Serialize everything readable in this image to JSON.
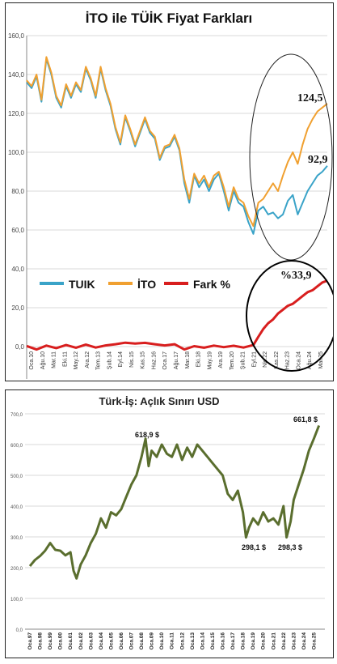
{
  "chart_data": [
    {
      "type": "line",
      "title": "İTO ile TÜİK Fiyat Farkları",
      "ylim": [
        0,
        160
      ],
      "yticks": [
        "0,0",
        "20,0",
        "40,0",
        "60,0",
        "80,0",
        "100,0",
        "120,0",
        "140,0",
        "160,0"
      ],
      "xticks": [
        "Oca.10",
        "Ağu.10",
        "Mar.11",
        "Eki.11",
        "May.12",
        "Ara.12",
        "Tem.13",
        "Şub.14",
        "Eyl.14",
        "Nis.15",
        "Kas.15",
        "Haz.16",
        "Oca.17",
        "Ağu.17",
        "Mar.18",
        "Eki.18",
        "May.19",
        "Ara.19",
        "Tem.20",
        "Şub.21",
        "Eyl.21",
        "Nis.22",
        "Kas.22",
        "Haz.23",
        "Oca.24",
        "Ağu.24",
        "Mar.25"
      ],
      "legend": [
        "TUIK",
        "İTO",
        "Fark %"
      ],
      "colors": {
        "tuik": "#3aa3c8",
        "ito": "#f0a030",
        "fark": "#d81e1e",
        "grid": "#d9d9d9"
      },
      "annotations": [
        "124,5",
        "92,9",
        "%33,9"
      ],
      "series": [
        {
          "name": "TUIK",
          "x": [
            0,
            3,
            6,
            9,
            12,
            15,
            18,
            21,
            24,
            27,
            30,
            33,
            36,
            39,
            42,
            45,
            48,
            51,
            54,
            57,
            60,
            63,
            66,
            69,
            72,
            75,
            78,
            81,
            84,
            87,
            90,
            93,
            96,
            99,
            102,
            105,
            108,
            111,
            114,
            117,
            120,
            123,
            126,
            129,
            132,
            135,
            138,
            141,
            144,
            147,
            150,
            153,
            156,
            159,
            162,
            165,
            168,
            171,
            174,
            177,
            180,
            183
          ],
          "values": [
            136,
            133,
            139,
            126,
            148,
            140,
            128,
            123,
            134,
            128,
            135,
            131,
            143,
            137,
            128,
            143,
            132,
            124,
            112,
            104,
            118,
            111,
            103,
            110,
            117,
            110,
            107,
            96,
            102,
            103,
            108,
            101,
            84,
            74,
            88,
            82,
            86,
            80,
            86,
            89,
            80,
            70,
            80,
            74,
            72,
            64,
            58,
            70,
            72,
            68,
            69,
            66,
            68,
            75,
            78,
            68,
            74,
            80,
            84,
            88,
            90,
            93
          ]
        },
        {
          "name": "İTO",
          "x": [
            0,
            3,
            6,
            9,
            12,
            15,
            18,
            21,
            24,
            27,
            30,
            33,
            36,
            39,
            42,
            45,
            48,
            51,
            54,
            57,
            60,
            63,
            66,
            69,
            72,
            75,
            78,
            81,
            84,
            87,
            90,
            93,
            96,
            99,
            102,
            105,
            108,
            111,
            114,
            117,
            120,
            123,
            126,
            129,
            132,
            135,
            138,
            141,
            144,
            147,
            150,
            153,
            156,
            159,
            162,
            165,
            168,
            171,
            174,
            177,
            180,
            183
          ],
          "values": [
            137,
            134,
            140,
            127,
            149,
            141,
            129,
            124,
            135,
            129,
            136,
            132,
            144,
            138,
            129,
            144,
            133,
            125,
            113,
            105,
            119,
            112,
            104,
            111,
            118,
            111,
            108,
            97,
            103,
            104,
            109,
            102,
            86,
            76,
            89,
            84,
            88,
            82,
            88,
            90,
            82,
            72,
            82,
            76,
            74,
            67,
            62,
            74,
            76,
            80,
            84,
            80,
            88,
            95,
            100,
            94,
            104,
            112,
            117,
            121,
            123,
            125
          ]
        },
        {
          "name": "Fark %",
          "x": [
            0,
            6,
            12,
            18,
            24,
            30,
            36,
            42,
            48,
            54,
            60,
            66,
            72,
            78,
            84,
            90,
            96,
            102,
            108,
            114,
            120,
            126,
            132,
            138,
            141,
            144,
            147,
            150,
            153,
            156,
            159,
            162,
            165,
            168,
            171,
            174,
            177,
            180,
            183
          ],
          "values": [
            0.3,
            -1.5,
            0.5,
            -0.8,
            0.8,
            -0.6,
            1.0,
            -0.5,
            0.6,
            1.2,
            2.0,
            1.6,
            1.9,
            1.2,
            0.6,
            1.2,
            -1.5,
            0.2,
            -0.6,
            0.5,
            -0.3,
            0.4,
            -0.5,
            0.8,
            5,
            9,
            12,
            14,
            17,
            19,
            21,
            22,
            24,
            26,
            28,
            29,
            31,
            33,
            33.9
          ]
        }
      ]
    },
    {
      "type": "line",
      "title": "Türk-İş: Açlık Sınırı USD",
      "ylim": [
        0,
        700
      ],
      "yticks": [
        "0,0",
        "100,0",
        "200,0",
        "300,0",
        "400,0",
        "500,0",
        "600,0",
        "700,0"
      ],
      "xticks": [
        "Oca.97",
        "Oca.98",
        "Oca.99",
        "Oca.00",
        "Oca.01",
        "Oca.02",
        "Oca.03",
        "Oca.04",
        "Oca.05",
        "Oca.06",
        "Oca.07",
        "Oca.08",
        "Oca.09",
        "Oca.10",
        "Oca.11",
        "Oca.12",
        "Oca.13",
        "Oca.14",
        "Oca.15",
        "Oca.16",
        "Oca.17",
        "Oca.18",
        "Oca.19",
        "Oca.20",
        "Oca.21",
        "Oca.22",
        "Oca.23",
        "Oca.24",
        "Oca.25"
      ],
      "colors": {
        "line": "#5a6e2e",
        "grid": "#d9d9d9"
      },
      "annotations": [
        "618,9 $",
        "298,1 $",
        "298,3 $",
        "661,8 $"
      ],
      "series": [
        {
          "name": "Açlık Sınırı USD",
          "x": [
            1997,
            1997.5,
            1998,
            1998.5,
            1999,
            1999.5,
            2000,
            2000.5,
            2001,
            2001.3,
            2001.6,
            2002,
            2002.5,
            2003,
            2003.5,
            2004,
            2004.5,
            2005,
            2005.5,
            2006,
            2006.5,
            2007,
            2007.5,
            2008,
            2008.4,
            2008.7,
            2009,
            2009.5,
            2010,
            2010.5,
            2011,
            2011.5,
            2012,
            2012.5,
            2013,
            2013.5,
            2014,
            2014.5,
            2015,
            2015.5,
            2016,
            2016.5,
            2017,
            2017.5,
            2018,
            2018.3,
            2018.6,
            2019,
            2019.5,
            2020,
            2020.5,
            2021,
            2021.5,
            2022,
            2022.3,
            2022.7,
            2023,
            2023.5,
            2024,
            2024.5,
            2025,
            2025.5
          ],
          "values": [
            205,
            225,
            238,
            255,
            280,
            258,
            255,
            240,
            250,
            190,
            165,
            210,
            240,
            280,
            310,
            360,
            330,
            380,
            370,
            390,
            430,
            470,
            500,
            560,
            618.9,
            530,
            580,
            560,
            600,
            570,
            560,
            600,
            550,
            590,
            560,
            600,
            580,
            560,
            540,
            520,
            500,
            440,
            420,
            450,
            380,
            298.1,
            330,
            360,
            340,
            380,
            350,
            360,
            340,
            400,
            298.3,
            350,
            420,
            470,
            520,
            580,
            620,
            661.8
          ]
        }
      ]
    }
  ]
}
